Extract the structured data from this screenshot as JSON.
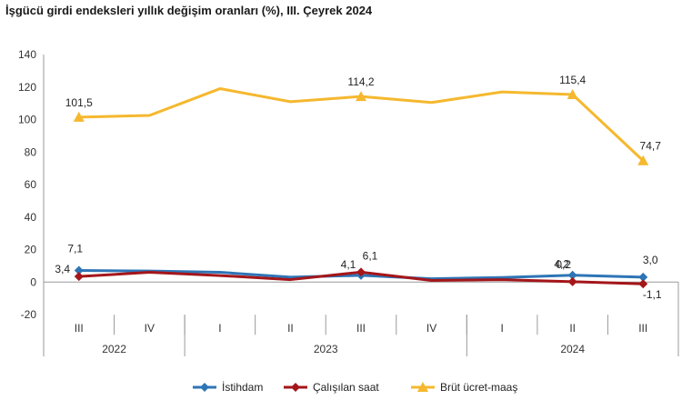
{
  "chart_data": {
    "type": "line",
    "title": "İşgücü girdi endeksleri yıllık değişim oranları (%), III. Çeyrek 2024",
    "quarters": [
      "III",
      "IV",
      "I",
      "II",
      "III",
      "IV",
      "I",
      "II",
      "III"
    ],
    "years": [
      {
        "label": "2022",
        "span": 2
      },
      {
        "label": "2023",
        "span": 4
      },
      {
        "label": "2024",
        "span": 3
      }
    ],
    "y_ticks": [
      "140",
      "120",
      "100",
      "80",
      "60",
      "40",
      "20",
      "0",
      "-20"
    ],
    "ylim": [
      -20,
      140
    ],
    "grid": false,
    "legend_position": "bottom",
    "series": [
      {
        "name": "İstihdam",
        "color": "#2E75B6",
        "marker": "diamond",
        "values": [
          7.1,
          6.8,
          6.0,
          3.0,
          4.1,
          2.0,
          2.8,
          4.2,
          3.0
        ],
        "labels": [
          {
            "index": 0,
            "text": "7,1"
          },
          {
            "index": 4,
            "text": "4,1"
          },
          {
            "index": 7,
            "text": "4,2"
          },
          {
            "index": 8,
            "text": "3,0"
          }
        ]
      },
      {
        "name": "Çalışılan saat",
        "color": "#A4161A",
        "marker": "diamond",
        "values": [
          3.4,
          6.0,
          4.0,
          1.5,
          6.1,
          1.0,
          1.5,
          0.2,
          -1.1
        ],
        "labels": [
          {
            "index": 0,
            "text": "3,4"
          },
          {
            "index": 4,
            "text": "6,1"
          },
          {
            "index": 7,
            "text": "0,2"
          },
          {
            "index": 8,
            "text": "-1,1"
          }
        ]
      },
      {
        "name": "Brüt ücret-maaş",
        "color": "#F5B82E",
        "marker": "triangle",
        "values": [
          101.5,
          102.5,
          119.0,
          111.0,
          114.2,
          110.5,
          117.0,
          115.4,
          74.7
        ],
        "labels": [
          {
            "index": 0,
            "text": "101,5"
          },
          {
            "index": 4,
            "text": "114,2"
          },
          {
            "index": 7,
            "text": "115,4"
          },
          {
            "index": 8,
            "text": "74,7"
          }
        ]
      }
    ]
  }
}
